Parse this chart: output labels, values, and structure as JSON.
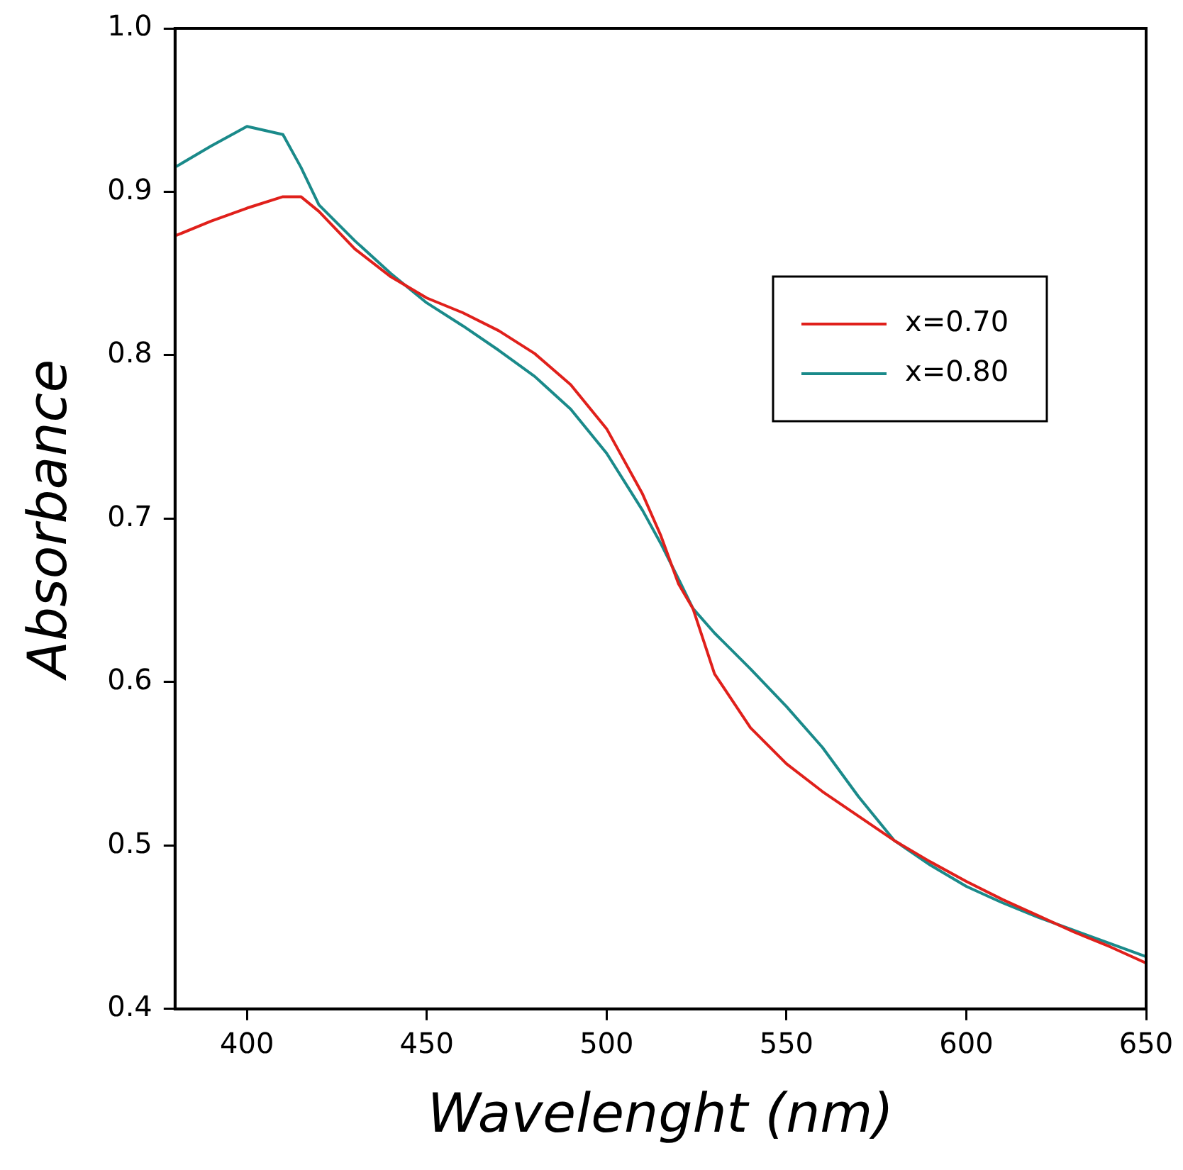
{
  "chart_data": {
    "type": "line",
    "xlabel": "Wavelenght (nm)",
    "ylabel": "Absorbance",
    "xlim": [
      380,
      650
    ],
    "xticks": [
      400,
      450,
      500,
      550,
      600,
      650
    ],
    "ylim": [
      0.4,
      1.0
    ],
    "yticks": [
      0.4,
      0.5,
      0.6,
      0.7,
      0.8,
      0.9,
      {
        "value": 1,
        "label": "1.0"
      }
    ],
    "grid": false,
    "legend": "right",
    "marker": "none",
    "line_style": "solid",
    "x": [
      380,
      390,
      400,
      410,
      415,
      420,
      430,
      440,
      450,
      460,
      470,
      480,
      490,
      500,
      510,
      515,
      520,
      524,
      530,
      540,
      550,
      560,
      570,
      580,
      590,
      600,
      610,
      620,
      630,
      640,
      650
    ],
    "series": [
      {
        "name": "x=0.70",
        "color": "#e0201b",
        "values": [
          0.873,
          0.882,
          0.89,
          0.897,
          0.897,
          0.888,
          0.865,
          0.848,
          0.835,
          0.826,
          0.815,
          0.801,
          0.782,
          0.755,
          0.715,
          0.69,
          0.66,
          0.645,
          0.605,
          0.572,
          0.55,
          0.533,
          0.518,
          0.503,
          0.49,
          0.478,
          0.467,
          0.457,
          0.447,
          0.438,
          0.428
        ]
      },
      {
        "name": "x=0.80",
        "color": "#1a8a8a",
        "values": [
          0.915,
          0.928,
          0.94,
          0.935,
          0.915,
          0.892,
          0.87,
          0.85,
          0.832,
          0.818,
          0.803,
          0.787,
          0.767,
          0.74,
          0.705,
          0.685,
          0.663,
          0.645,
          0.63,
          0.608,
          0.585,
          0.56,
          0.53,
          0.503,
          0.488,
          0.475,
          0.465,
          0.456,
          0.448,
          0.44,
          0.432
        ]
      }
    ]
  }
}
